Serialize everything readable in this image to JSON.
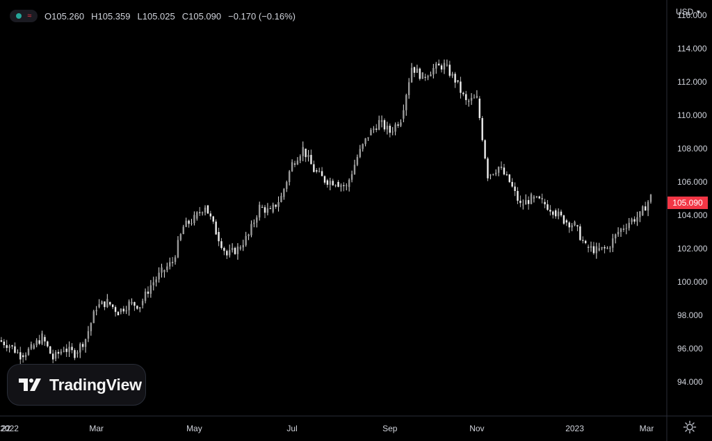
{
  "ohlc": {
    "open": "O105.260",
    "high": "H105.359",
    "low": "L105.025",
    "close": "C105.090",
    "change": "−0.170 (−0.16%)"
  },
  "currency": "USD",
  "last_price": "105.090",
  "logo": {
    "text": "TradingView",
    "icon": "tradingview-logo-icon"
  },
  "status_icons": [
    "live-dot-icon",
    "wave-icon"
  ],
  "settings_icon": "gear-icon",
  "colors": {
    "background": "#000000",
    "last_price_bg": "#f23645",
    "axis_text": "#d1d4dc",
    "candle_up": "#e6e6e6",
    "candle_down": "#b9b9b9",
    "status_dot": "#26a69a"
  },
  "chart_data": {
    "type": "candlestick",
    "series": [
      {
        "name": "",
        "ohlc_last": {
          "open": 105.26,
          "high": 105.359,
          "low": 105.025,
          "close": 105.09
        }
      }
    ],
    "x": [
      "2021-12-27",
      "2022-01-03",
      "2022-01-10",
      "2022-01-17",
      "2022-01-24",
      "2022-01-31",
      "2022-02-07",
      "2022-02-14",
      "2022-02-21",
      "2022-02-28",
      "2022-03-07",
      "2022-03-14",
      "2022-03-21",
      "2022-03-28",
      "2022-04-04",
      "2022-04-11",
      "2022-04-18",
      "2022-04-25",
      "2022-05-02",
      "2022-05-09",
      "2022-05-16",
      "2022-05-23",
      "2022-05-30",
      "2022-06-06",
      "2022-06-13",
      "2022-06-20",
      "2022-06-27",
      "2022-07-04",
      "2022-07-11",
      "2022-07-18",
      "2022-07-25",
      "2022-08-01",
      "2022-08-08",
      "2022-08-15",
      "2022-08-22",
      "2022-08-29",
      "2022-09-05",
      "2022-09-12",
      "2022-09-19",
      "2022-09-26",
      "2022-10-03",
      "2022-10-10",
      "2022-10-17",
      "2022-10-24",
      "2022-10-31",
      "2022-11-07",
      "2022-11-14",
      "2022-11-21",
      "2022-11-28",
      "2022-12-05",
      "2022-12-12",
      "2022-12-19",
      "2022-12-26",
      "2023-01-02",
      "2023-01-09",
      "2023-01-16",
      "2023-01-23",
      "2023-01-30",
      "2023-02-06",
      "2023-02-13",
      "2023-02-20"
    ],
    "close": [
      96.5,
      96.2,
      95.6,
      96.0,
      96.7,
      95.4,
      96.0,
      95.7,
      96.6,
      98.5,
      98.8,
      98.2,
      98.7,
      98.6,
      99.8,
      100.6,
      101.2,
      103.3,
      103.8,
      104.6,
      103.0,
      101.6,
      102.0,
      102.8,
      104.5,
      104.2,
      105.1,
      107.1,
      108.0,
      106.7,
      106.1,
      106.0,
      105.7,
      107.5,
      108.8,
      109.6,
      109.0,
      109.8,
      112.9,
      112.3,
      112.8,
      113.0,
      112.1,
      110.8,
      111.0,
      106.4,
      106.9,
      106.0,
      104.6,
      105.0,
      104.8,
      104.3,
      103.7,
      103.4,
      102.1,
      101.9,
      102.0,
      103.0,
      103.6,
      104.0,
      105.1
    ],
    "y_axis_ticks": [
      "94.000",
      "96.000",
      "98.000",
      "100.000",
      "102.000",
      "104.000",
      "106.000",
      "108.000",
      "110.000",
      "112.000",
      "114.000",
      "116.000"
    ],
    "x_axis_ticks": [
      "22",
      "2022",
      "Mar",
      "May",
      "Jul",
      "Sep",
      "Nov",
      "2023",
      "Mar"
    ],
    "ylim": [
      92.0,
      116.0
    ],
    "grid": false,
    "legend": "none"
  }
}
